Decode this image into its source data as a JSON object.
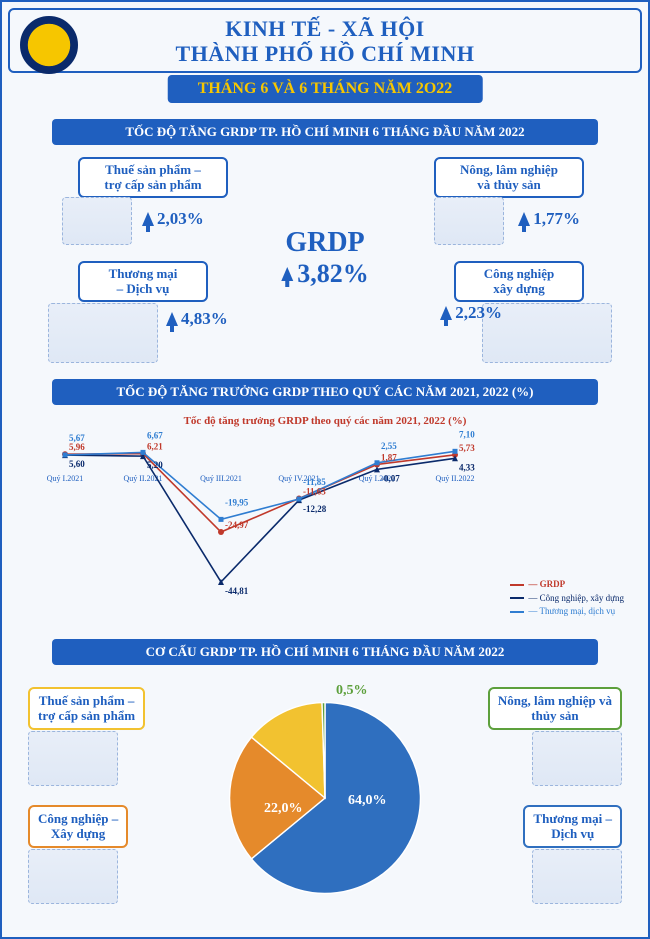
{
  "header": {
    "title_line1": "KINH TẾ - XÃ HỘI",
    "title_line2": "THÀNH PHỐ HỒ CHÍ MINH",
    "subtitle": "THÁNG 6 VÀ 6 THÁNG NĂM 2O22",
    "logo_outer_color": "#0a2a6b",
    "logo_inner_color": "#f6c600"
  },
  "colors": {
    "primary": "#1f5fbf",
    "accent_yellow": "#f6c600",
    "bg": "#f5f8fc",
    "red_series": "#c0392b",
    "navy_series": "#0a2a6b",
    "blue_series": "#2f7dd1",
    "pie_blue": "#2f6fbf",
    "pie_orange": "#e58a2b",
    "pie_yellow": "#f2c230",
    "pie_green": "#5da03c",
    "box_tax": "#f2c230",
    "box_agri": "#5da03c",
    "box_ind": "#e58a2b",
    "box_trade": "#2f6fbf"
  },
  "section1": {
    "title": "TỐC ĐỘ TĂNG GRDP TP. HỒ CHÍ MINH 6 THÁNG ĐẦU NĂM 2022",
    "center_label": "GRDP",
    "center_value": "3,82%",
    "sectors": {
      "tax": {
        "label_l1": "Thuế sản phẩm –",
        "label_l2": "trợ cấp sản phẩm",
        "value": "2,03%"
      },
      "agri": {
        "label_l1": "Nông, lâm nghiệp",
        "label_l2": "và thủy sản",
        "value": "1,77%"
      },
      "trade": {
        "label_l1": "Thương mại",
        "label_l2": "– Dịch vụ",
        "value": "4,83%"
      },
      "ind": {
        "label_l1": "Công nghiệp",
        "label_l2": "xây dựng",
        "value": "2,23%"
      }
    }
  },
  "section2": {
    "title": "TỐC ĐỘ TĂNG TRƯỞNG GRDP THEO QUÝ CÁC NĂM 2021, 2022 (%)",
    "chart_title": "Tốc độ tăng trưởng GRDP theo quý các năm 2021, 2022 (%)",
    "type": "line",
    "x_categories": [
      "Quý I.2021",
      "Quý II.2021",
      "Quý III.2021",
      "Quý IV.2021",
      "Quý I.2022",
      "Quý II.2022"
    ],
    "ylim": [
      -50,
      12
    ],
    "series": [
      {
        "name": "GRDP",
        "color": "#c0392b",
        "marker": "circle",
        "values": [
          5.96,
          6.21,
          -24.97,
          -11.63,
          1.87,
          5.73
        ]
      },
      {
        "name": "Công nghiệp, xây dựng",
        "color": "#0a2a6b",
        "marker": "triangle",
        "values": [
          5.6,
          5.2,
          -44.81,
          -12.28,
          -0.07,
          4.33
        ]
      },
      {
        "name": "Thương mại, dịch vụ",
        "color": "#2f7dd1",
        "marker": "square",
        "values": [
          5.67,
          6.67,
          -19.95,
          -11.85,
          2.55,
          7.1
        ]
      }
    ],
    "point_labels": {
      "q1": [
        "5,96",
        "5,60",
        "5,67"
      ],
      "q2": [
        "6,21",
        "5,20",
        "6,67"
      ],
      "q3": [
        "-24,97",
        "-44,81",
        "-19,95"
      ],
      "q4": [
        "-11,63",
        "-12,28",
        "-11,85"
      ],
      "q5": [
        "1,87",
        "-0,07",
        "2,55"
      ],
      "q6": [
        "5,73",
        "4,33",
        "7,10"
      ]
    },
    "legend": [
      "GRDP",
      "Công nghiệp, xây dựng",
      "Thương mại, dịch vụ"
    ]
  },
  "section3": {
    "title": "CƠ CẤU GRDP TP. HỒ CHÍ MINH 6 THÁNG ĐẦU NĂM 2022",
    "type": "pie",
    "slices": [
      {
        "label": "Thương mại – Dịch vụ",
        "value": 64.0,
        "display": "64,0%",
        "color": "#2f6fbf"
      },
      {
        "label": "Công nghiệp – Xây dựng",
        "value": 22.0,
        "display": "22,0%",
        "color": "#e58a2b"
      },
      {
        "label": "Thuế sản phẩm – trợ cấp sản phẩm",
        "value": 13.5,
        "display": "13,5%",
        "color": "#f2c230"
      },
      {
        "label": "Nông, lâm nghiệp và thủy sản",
        "value": 0.5,
        "display": "0,5%",
        "color": "#5da03c"
      }
    ],
    "boxes": {
      "tax": {
        "l1": "Thuế sản phẩm –",
        "l2": "trợ cấp sản phẩm"
      },
      "agri": {
        "l1": "Nông, lâm nghiệp và",
        "l2": "thủy sản"
      },
      "ind": {
        "l1": "Công nghiệp –",
        "l2": "Xây dựng"
      },
      "trade": {
        "l1": "Thương mại –",
        "l2": "Dịch vụ"
      }
    }
  }
}
